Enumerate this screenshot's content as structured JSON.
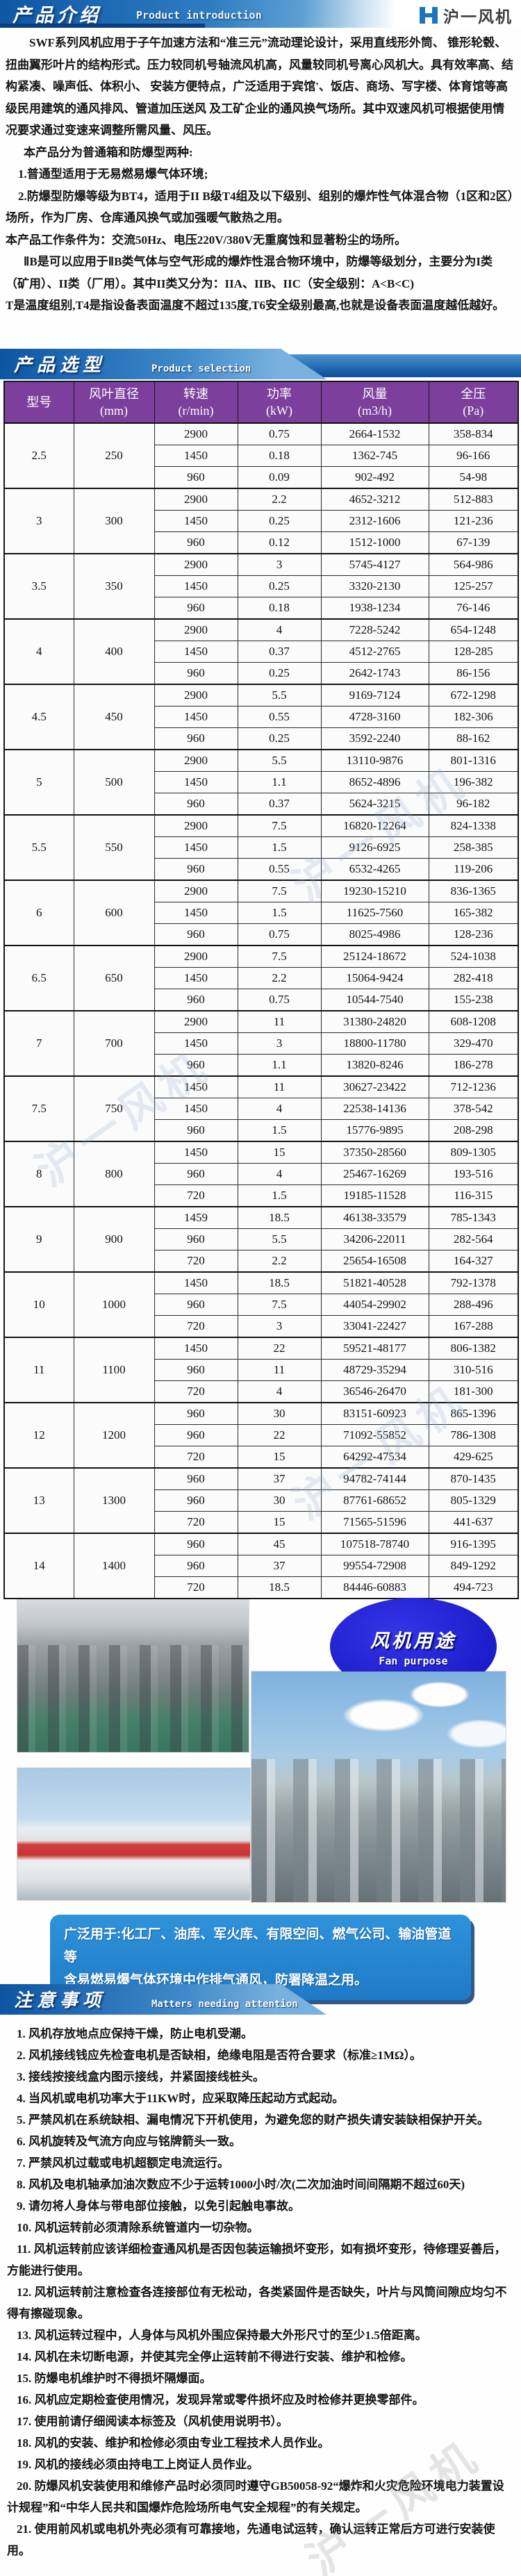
{
  "header": {
    "logo_text": "沪一风机",
    "logo_icon": "h-blocks-icon",
    "accent_blue": "#1b75bc",
    "banner_blue": "#0f57a4"
  },
  "intro": {
    "title_cn": "产品介绍",
    "title_en": "Product introduction",
    "paragraphs": [
      "SWF系列风机应用于子午加速方法和“准三元”流动理论设计，采用直线形外筒、 锥形轮毂、扭曲翼形叶片的结构形式。压力较同机号轴流风机高，风量较同机号离心风机大。具有效率高、结构紧凑、噪声低、体积小、 安装方便特点，广泛适用于宾馆'、饭店、商场、写字楼、体育馆等高级民用建筑的通风排风、管道加压送风 及工矿企业的通风换气场所。其中双速风机可根据使用情况要求通过变速来调整所需风量、风压。",
      "本产品分为普通箱和防爆型两种:",
      "1.普通型适用于无易燃易爆气体环境;",
      "2.防爆型防爆等级为BT4，适用于II B级T4组及以下级别、组别的爆炸性气体混合物（1区和2区）场所，作为厂房、仓库通风换气或加强暖气散热之用。",
      "本产品工作条件为：交流50Hz、电压220V/380V无重腐蚀和显著粉尘的场所。",
      "ⅡB是可以应用于ⅡB类气体与空气形成的爆炸性混合物环境中，防爆等级划分，主要分为I类（矿用）、II类（厂用）。其中II类又分为：IIA、IIB、IIC（安全级别：A<B<C)",
      "T是温度组别,T4是指设备表面温度不超过135度,T6安全级别最高,也就是设备表面温度越低越好。"
    ]
  },
  "selection": {
    "title_cn": "产品选型",
    "title_en": "Product selection",
    "table": {
      "columns": [
        {
          "line1": "型号",
          "line2": ""
        },
        {
          "line1": "风叶直径",
          "line2": "(mm)"
        },
        {
          "line1": "转速",
          "line2": "(r/min)"
        },
        {
          "line1": "功率",
          "line2": "(kW)"
        },
        {
          "line1": "风量",
          "line2": "(m3/h)"
        },
        {
          "line1": "全压",
          "line2": "(Pa)"
        }
      ],
      "groups": [
        {
          "model": "2.5",
          "diameter": "250",
          "rows": [
            [
              "2900",
              "0.75",
              "2664-1532",
              "358-834"
            ],
            [
              "1450",
              "0.18",
              "1362-745",
              "96-166"
            ],
            [
              "960",
              "0.09",
              "902-492",
              "54-98"
            ]
          ]
        },
        {
          "model": "3",
          "diameter": "300",
          "rows": [
            [
              "2900",
              "2.2",
              "4652-3212",
              "512-883"
            ],
            [
              "1450",
              "0.25",
              "2312-1606",
              "121-236"
            ],
            [
              "960",
              "0.12",
              "1512-1000",
              "67-139"
            ]
          ]
        },
        {
          "model": "3.5",
          "diameter": "350",
          "rows": [
            [
              "2900",
              "3",
              "5745-4127",
              "564-986"
            ],
            [
              "1450",
              "0.25",
              "3320-2130",
              "125-257"
            ],
            [
              "960",
              "0.18",
              "1938-1234",
              "76-146"
            ]
          ]
        },
        {
          "model": "4",
          "diameter": "400",
          "rows": [
            [
              "2900",
              "4",
              "7228-5242",
              "654-1248"
            ],
            [
              "1450",
              "0.37",
              "4512-2765",
              "128-285"
            ],
            [
              "960",
              "0.25",
              "2642-1743",
              "86-156"
            ]
          ]
        },
        {
          "model": "4.5",
          "diameter": "450",
          "rows": [
            [
              "2900",
              "5.5",
              "9169-7124",
              "672-1298"
            ],
            [
              "1450",
              "0.55",
              "4728-3160",
              "182-306"
            ],
            [
              "960",
              "0.25",
              "3592-2240",
              "88-162"
            ]
          ]
        },
        {
          "model": "5",
          "diameter": "500",
          "rows": [
            [
              "2900",
              "5.5",
              "13110-9876",
              "801-1316"
            ],
            [
              "1450",
              "1.1",
              "8652-4896",
              "196-382"
            ],
            [
              "960",
              "0.37",
              "5624-3215",
              "96-182"
            ]
          ]
        },
        {
          "model": "5.5",
          "diameter": "550",
          "rows": [
            [
              "2900",
              "7.5",
              "16820-12264",
              "824-1338"
            ],
            [
              "1450",
              "1.5",
              "9126-6925",
              "258-385"
            ],
            [
              "960",
              "0.55",
              "6532-4265",
              "119-206"
            ]
          ]
        },
        {
          "model": "6",
          "diameter": "600",
          "rows": [
            [
              "2900",
              "7.5",
              "19230-15210",
              "836-1365"
            ],
            [
              "1450",
              "1.5",
              "11625-7560",
              "165-382"
            ],
            [
              "960",
              "0.75",
              "8025-4986",
              "128-236"
            ]
          ]
        },
        {
          "model": "6.5",
          "diameter": "650",
          "rows": [
            [
              "2900",
              "7.5",
              "25124-18672",
              "524-1038"
            ],
            [
              "1450",
              "2.2",
              "15064-9424",
              "282-418"
            ],
            [
              "960",
              "0.75",
              "10544-7540",
              "155-238"
            ]
          ]
        },
        {
          "model": "7",
          "diameter": "700",
          "rows": [
            [
              "2900",
              "11",
              "31380-24820",
              "608-1208"
            ],
            [
              "1450",
              "3",
              "18800-11780",
              "329-470"
            ],
            [
              "960",
              "1.1",
              "13820-8246",
              "186-278"
            ]
          ]
        },
        {
          "model": "7.5",
          "diameter": "750",
          "rows": [
            [
              "1450",
              "11",
              "30627-23422",
              "712-1236"
            ],
            [
              "1450",
              "4",
              "22538-14136",
              "378-542"
            ],
            [
              "960",
              "1.5",
              "15776-9895",
              "208-298"
            ]
          ]
        },
        {
          "model": "8",
          "diameter": "800",
          "rows": [
            [
              "1450",
              "15",
              "37350-28560",
              "809-1305"
            ],
            [
              "960",
              "4",
              "25467-16269",
              "193-516"
            ],
            [
              "720",
              "1.5",
              "19185-11528",
              "116-315"
            ]
          ]
        },
        {
          "model": "9",
          "diameter": "900",
          "rows": [
            [
              "1459",
              "18.5",
              "46138-33579",
              "785-1343"
            ],
            [
              "960",
              "5.5",
              "34206-22011",
              "282-564"
            ],
            [
              "720",
              "2.2",
              "25654-16508",
              "164-327"
            ]
          ]
        },
        {
          "model": "10",
          "diameter": "1000",
          "rows": [
            [
              "1450",
              "18.5",
              "51821-40528",
              "792-1378"
            ],
            [
              "960",
              "7.5",
              "44054-29902",
              "288-496"
            ],
            [
              "720",
              "3",
              "33041-22427",
              "167-288"
            ]
          ]
        },
        {
          "model": "11",
          "diameter": "1100",
          "rows": [
            [
              "1450",
              "22",
              "59521-48177",
              "806-1382"
            ],
            [
              "960",
              "11",
              "48729-35294",
              "310-516"
            ],
            [
              "720",
              "4",
              "36546-26470",
              "181-300"
            ]
          ]
        },
        {
          "model": "12",
          "diameter": "1200",
          "rows": [
            [
              "960",
              "30",
              "83151-60923",
              "865-1396"
            ],
            [
              "960",
              "22",
              "71092-55852",
              "786-1308"
            ],
            [
              "720",
              "15",
              "64292-47534",
              "429-625"
            ]
          ]
        },
        {
          "model": "13",
          "diameter": "1300",
          "rows": [
            [
              "960",
              "37",
              "94782-74144",
              "870-1435"
            ],
            [
              "960",
              "30",
              "87761-68652",
              "805-1329"
            ],
            [
              "720",
              "15",
              "71565-51596",
              "441-637"
            ]
          ]
        },
        {
          "model": "14",
          "diameter": "1400",
          "rows": [
            [
              "960",
              "45",
              "107518-78740",
              "916-1395"
            ],
            [
              "960",
              "37",
              "99554-72908",
              "849-1292"
            ],
            [
              "720",
              "18.5",
              "84446-60883",
              "494-723"
            ]
          ]
        }
      ]
    }
  },
  "fan_purpose": {
    "title_cn": "风机用途",
    "title_en": "Fan purpose",
    "oval_blue": "#1b1bc8"
  },
  "application": {
    "line1": "广泛用于:化工厂、油库、军火库、有限空间、燃气公司、输油管道等",
    "line2": "含易燃易爆气体环境中作排气通风，防署降温之用。",
    "banner_blue": "#2f93da"
  },
  "attention": {
    "title_cn": "注意事项",
    "title_en": "Matters needing attention",
    "notes": [
      "1. 风机存放地点应保持干燥，防止电机受潮。",
      "2. 风机接线钱应先检查电机是否缺相，绝缘电阻是否符合要求（标准≥1MΩ）。",
      "3. 接线按接线盒内图示接线，并紧固接线桩头。",
      "4. 当风机或电机功率大于11KW时，应采取降压起动方式起动。",
      "5. 严禁风机在系统缺相、漏电情况下开机使用，为避免您的财产损失请安装缺相保护开关。",
      "6. 风机旋转及气流方向应与铭牌箭头一致。",
      "7. 严禁风机过载或电机超额定电流运行。",
      "8. 风机及电机轴承加油次数应不少于运转1000小时/次(二次加油时间间隔期不超过60天)",
      "9. 请勿将人身体与带电部位接触，以免引起触电事故。",
      "10. 风机运转前必须清除系统管道内一切杂物。",
      "11. 风机运转前应该详细检查通风机是否因包装运输损坏变形，如有损坏变形，待修理妥善后，方能进行使用。",
      "12. 风机运转前注意检查各连接部位有无松动，各类紧固件是否缺失，叶片与风筒间隙应均匀不得有擦碰现象。",
      "13. 风机运转过程中，人身体与风机外围应保持最大外形尺寸的至少1.5倍距离。",
      "14. 风机在未切断电源，并使其完全停止运转前不得进行安装、维护和检修。",
      "15. 防爆电机维护时不得损坏隔爆面。",
      "16. 风机应定期检查使用情况，发现异常或零件损坏应及时检修并更换零部件。",
      "17. 使用前请仔细阅读本标签及（风机使用说明书）。",
      "18. 风机的安装、维护和检修必须由专业工程技术人员作业。",
      "19. 风机的接线必须由持电工上岗证人员作业。",
      "20. 防爆风机安装使用和维修产品时必须同时遵守GB50058-92“爆炸和火灾危险环境电力装置设计规程”和“中华人民共和国爆炸危险场所电气安全规程”的有关规定。",
      "21. 使用前风机或电机外壳必须有可靠接地，先通电试运转，确认运转正常后方可进行安装使用。"
    ]
  }
}
